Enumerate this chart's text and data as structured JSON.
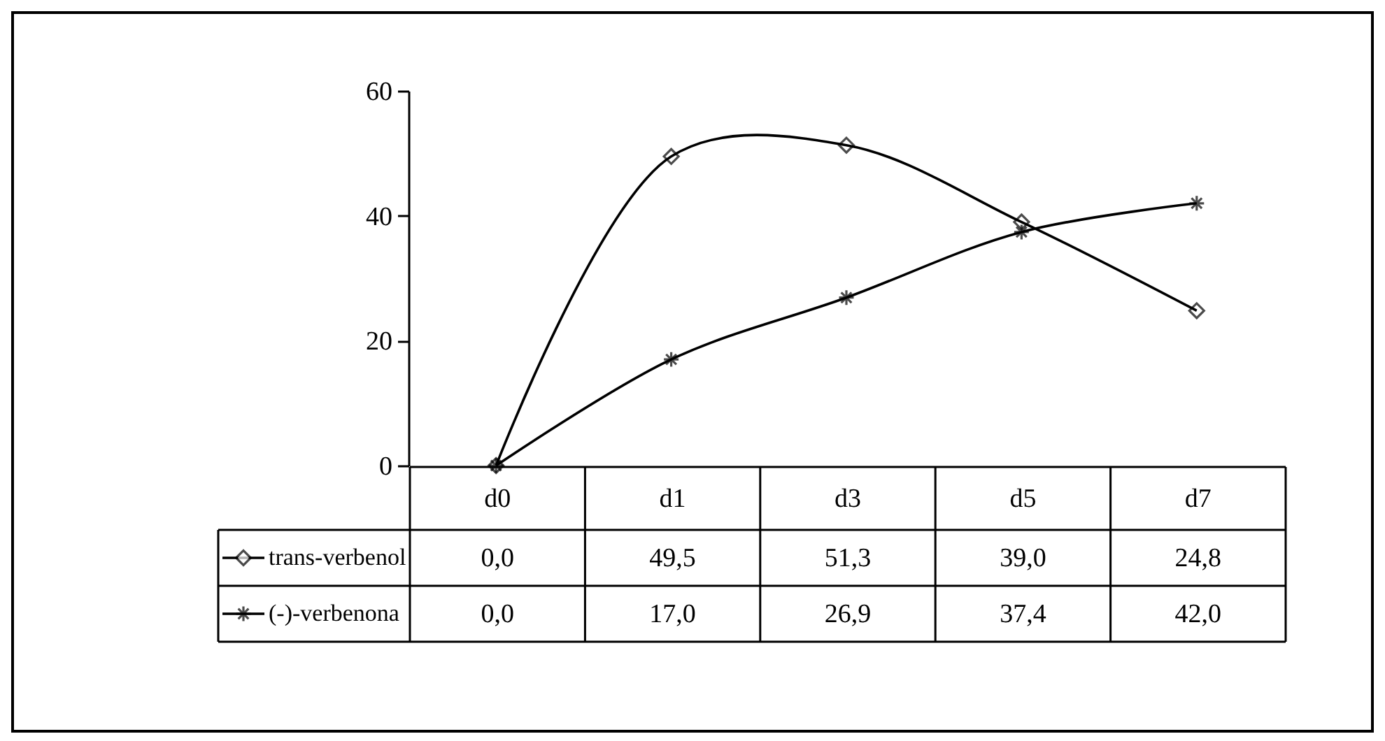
{
  "chart_data": {
    "type": "line",
    "categories": [
      "d0",
      "d1",
      "d3",
      "d5",
      "d7"
    ],
    "series": [
      {
        "name": "trans-verbenol",
        "color": "#000000",
        "marker": "diamond",
        "values": [
          0.0,
          49.5,
          51.3,
          39.0,
          24.8
        ],
        "value_labels": [
          "0,0",
          "49,5",
          "51,3",
          "39,0",
          "24,8"
        ]
      },
      {
        "name": "(-)-verbenona",
        "color": "#000000",
        "marker": "cross",
        "values": [
          0.0,
          17.0,
          26.9,
          37.4,
          42.0
        ],
        "value_labels": [
          "0,0",
          "17,0",
          "26,9",
          "37,4",
          "42,0"
        ]
      }
    ],
    "ylim": [
      0,
      60
    ],
    "yticks": [
      0,
      20,
      40,
      60
    ],
    "legend": "bottom left"
  }
}
